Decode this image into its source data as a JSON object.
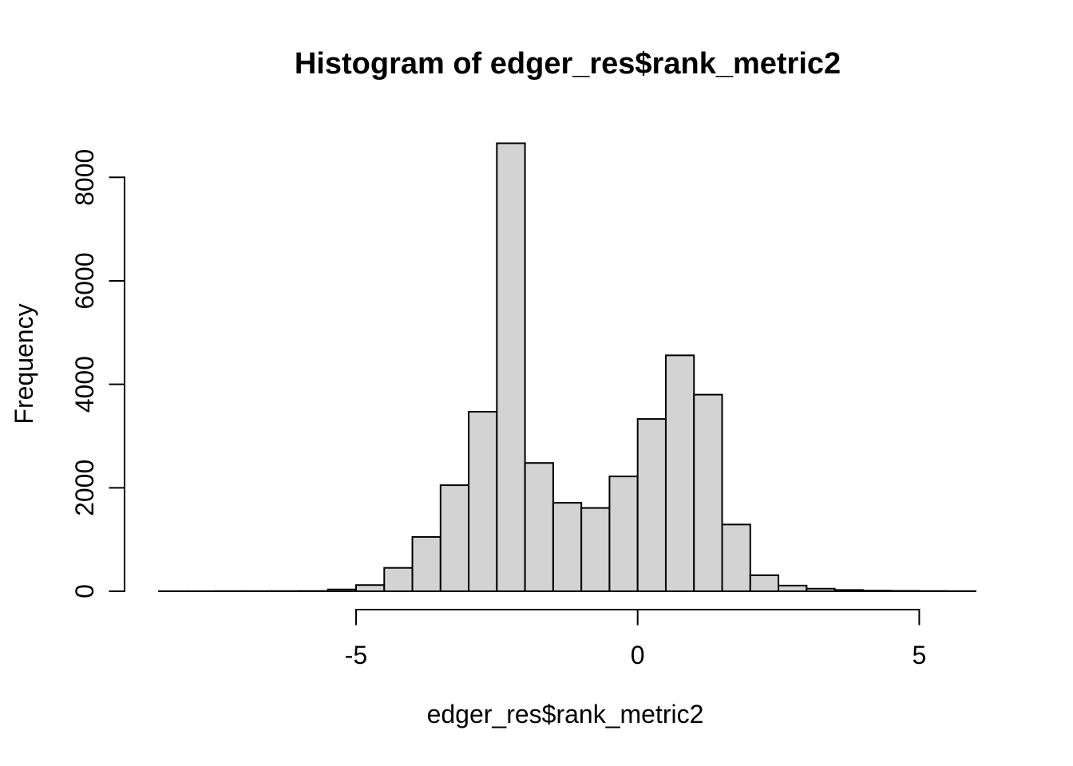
{
  "page": {
    "background": "#ffffff"
  },
  "chart_data": {
    "type": "bar",
    "subtype": "histogram",
    "title": "Histogram of edger_res$rank_metric2",
    "xlabel": "edger_res$rank_metric2",
    "ylabel": "Frequency",
    "bin_start": -8.5,
    "bin_width": 0.5,
    "bin_edges": [
      -8.5,
      -8.0,
      -7.5,
      -7.0,
      -6.5,
      -6.0,
      -5.5,
      -5.0,
      -4.5,
      -4.0,
      -3.5,
      -3.0,
      -2.5,
      -2.0,
      -1.5,
      -1.0,
      -0.5,
      0.0,
      0.5,
      1.0,
      1.5,
      2.0,
      2.5,
      3.0,
      3.5,
      4.0,
      4.5,
      5.0,
      5.5,
      6.0
    ],
    "counts": [
      2,
      2,
      3,
      3,
      4,
      5,
      35,
      120,
      452,
      1050,
      2050,
      3470,
      8660,
      2480,
      1710,
      1610,
      2220,
      3330,
      4560,
      3800,
      1290,
      310,
      110,
      50,
      25,
      12,
      8,
      5,
      3
    ],
    "x_ticks": [
      -5,
      0,
      5
    ],
    "x_tick_labels": [
      "-5",
      "0",
      "5"
    ],
    "y_ticks": [
      0,
      2000,
      4000,
      6000,
      8000
    ],
    "y_tick_labels": [
      "0",
      "2000",
      "4000",
      "6000",
      "8000"
    ],
    "xlim": [
      -8.5,
      6.0
    ],
    "ylim": [
      0,
      8660
    ],
    "x_axis_line_range": [
      -5,
      5
    ],
    "y_axis_line_range": [
      0,
      8000
    ],
    "grid": false,
    "legend": false,
    "colors": {
      "bar_fill": "#d3d3d3",
      "bar_stroke": "#000000",
      "axis": "#000000",
      "text": "#000000"
    }
  }
}
